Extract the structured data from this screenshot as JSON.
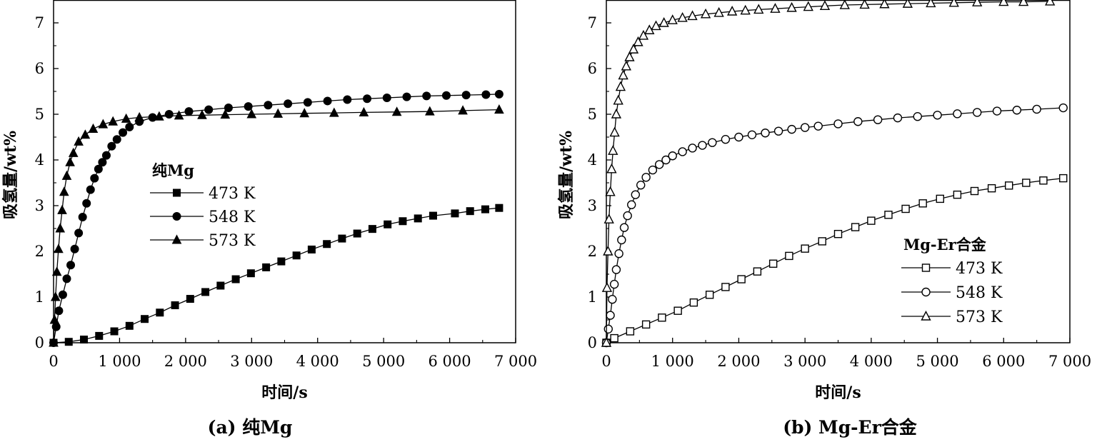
{
  "chart_data": [
    {
      "type": "line",
      "caption": "(a) 纯Mg",
      "xlabel": "时间/s",
      "ylabel": "吸氢量/wt%",
      "xlim": [
        0,
        7000
      ],
      "ylim": [
        0,
        7.5
      ],
      "xticks": [
        0,
        1000,
        2000,
        3000,
        4000,
        5000,
        6000,
        7000
      ],
      "xtick_labels": [
        "0",
        "1 000",
        "2 000",
        "3 000",
        "4 000",
        "5 000",
        "6 000",
        "7 000"
      ],
      "yticks": [
        0,
        1,
        2,
        3,
        4,
        5,
        6,
        7
      ],
      "ytick_labels": [
        "0",
        "1",
        "2",
        "3",
        "4",
        "5",
        "6",
        "7"
      ],
      "marker_style": "filled",
      "legend": {
        "title": "纯Mg",
        "position": "center-left"
      },
      "series": [
        {
          "name": "473 K",
          "marker": "square",
          "x": [
            0,
            230,
            460,
            690,
            920,
            1150,
            1380,
            1610,
            1840,
            2070,
            2300,
            2530,
            2760,
            2990,
            3220,
            3450,
            3680,
            3910,
            4140,
            4370,
            4600,
            4830,
            5060,
            5290,
            5520,
            5750,
            6080,
            6310,
            6540,
            6750
          ],
          "y": [
            0,
            0.02,
            0.07,
            0.15,
            0.25,
            0.37,
            0.52,
            0.66,
            0.82,
            0.96,
            1.11,
            1.25,
            1.39,
            1.52,
            1.65,
            1.78,
            1.91,
            2.04,
            2.16,
            2.28,
            2.39,
            2.49,
            2.59,
            2.66,
            2.72,
            2.78,
            2.83,
            2.88,
            2.92,
            2.95
          ]
        },
        {
          "name": "548 K",
          "marker": "circle",
          "x": [
            0,
            40,
            80,
            140,
            200,
            260,
            320,
            380,
            440,
            500,
            560,
            620,
            680,
            740,
            800,
            880,
            960,
            1050,
            1150,
            1300,
            1500,
            1750,
            2050,
            2350,
            2650,
            2950,
            3250,
            3550,
            3850,
            4150,
            4450,
            4750,
            5050,
            5350,
            5650,
            5950,
            6250,
            6550,
            6750
          ],
          "y": [
            0,
            0.35,
            0.7,
            1.05,
            1.4,
            1.7,
            2.05,
            2.4,
            2.75,
            3.05,
            3.35,
            3.6,
            3.8,
            3.95,
            4.1,
            4.3,
            4.45,
            4.6,
            4.72,
            4.84,
            4.93,
            5.0,
            5.06,
            5.1,
            5.14,
            5.17,
            5.2,
            5.23,
            5.26,
            5.29,
            5.32,
            5.34,
            5.36,
            5.38,
            5.4,
            5.41,
            5.42,
            5.43,
            5.44
          ]
        },
        {
          "name": "573 K",
          "marker": "triangle",
          "x": [
            0,
            15,
            30,
            50,
            75,
            100,
            130,
            160,
            200,
            250,
            300,
            380,
            480,
            600,
            750,
            900,
            1100,
            1300,
            1600,
            1900,
            2250,
            2600,
            3000,
            3400,
            3800,
            4250,
            4700,
            5200,
            5700,
            6200,
            6750
          ],
          "y": [
            0,
            0.5,
            1.0,
            1.55,
            2.05,
            2.5,
            2.9,
            3.3,
            3.65,
            3.95,
            4.15,
            4.4,
            4.55,
            4.68,
            4.78,
            4.84,
            4.9,
            4.93,
            4.95,
            4.97,
            4.98,
            4.99,
            5.0,
            5.01,
            5.02,
            5.03,
            5.04,
            5.05,
            5.06,
            5.08,
            5.1
          ]
        }
      ]
    },
    {
      "type": "line",
      "caption": "(b) Mg-Er合金",
      "xlabel": "时间/s",
      "ylabel": "吸氢量/wt%",
      "xlim": [
        0,
        7000
      ],
      "ylim": [
        0,
        7.5
      ],
      "xticks": [
        0,
        1000,
        2000,
        3000,
        4000,
        5000,
        6000,
        7000
      ],
      "xtick_labels": [
        "0",
        "1 000",
        "2 000",
        "3 000",
        "4 000",
        "5 000",
        "6 000",
        "7 000"
      ],
      "yticks": [
        0,
        1,
        2,
        3,
        4,
        5,
        6,
        7
      ],
      "ytick_labels": [
        "0",
        "1",
        "2",
        "3",
        "4",
        "5",
        "6",
        "7"
      ],
      "marker_style": "open",
      "legend": {
        "title": "Mg-Er合金",
        "position": "bottom-right"
      },
      "series": [
        {
          "name": "473 K",
          "marker": "square",
          "x": [
            0,
            120,
            360,
            600,
            840,
            1080,
            1320,
            1560,
            1800,
            2040,
            2280,
            2520,
            2760,
            3000,
            3260,
            3500,
            3760,
            4000,
            4260,
            4520,
            4780,
            5040,
            5300,
            5560,
            5820,
            6080,
            6340,
            6600,
            6900
          ],
          "y": [
            0,
            0.1,
            0.25,
            0.4,
            0.55,
            0.7,
            0.88,
            1.05,
            1.22,
            1.39,
            1.56,
            1.73,
            1.9,
            2.06,
            2.22,
            2.38,
            2.53,
            2.67,
            2.8,
            2.93,
            3.05,
            3.15,
            3.24,
            3.32,
            3.38,
            3.44,
            3.5,
            3.55,
            3.6
          ]
        },
        {
          "name": "548 K",
          "marker": "circle",
          "x": [
            0,
            30,
            60,
            90,
            120,
            150,
            190,
            230,
            270,
            320,
            380,
            440,
            520,
            600,
            700,
            800,
            900,
            1000,
            1150,
            1300,
            1450,
            1600,
            1800,
            2000,
            2200,
            2400,
            2600,
            2800,
            3000,
            3200,
            3500,
            3800,
            4100,
            4400,
            4700,
            5000,
            5300,
            5600,
            5900,
            6200,
            6500,
            6900
          ],
          "y": [
            0,
            0.3,
            0.6,
            0.95,
            1.28,
            1.6,
            1.95,
            2.25,
            2.52,
            2.78,
            3.02,
            3.24,
            3.45,
            3.62,
            3.78,
            3.9,
            4.0,
            4.09,
            4.18,
            4.26,
            4.32,
            4.38,
            4.45,
            4.5,
            4.55,
            4.59,
            4.63,
            4.67,
            4.71,
            4.74,
            4.79,
            4.84,
            4.88,
            4.92,
            4.95,
            4.98,
            5.01,
            5.04,
            5.07,
            5.09,
            5.11,
            5.14
          ]
        },
        {
          "name": "573 K",
          "marker": "triangle",
          "x": [
            0,
            10,
            25,
            40,
            60,
            80,
            100,
            125,
            150,
            180,
            215,
            255,
            300,
            350,
            410,
            480,
            560,
            650,
            750,
            870,
            1000,
            1150,
            1300,
            1500,
            1700,
            1900,
            2100,
            2300,
            2550,
            2800,
            3050,
            3300,
            3600,
            3900,
            4200,
            4550,
            4900,
            5250,
            5600,
            6000,
            6300,
            6700
          ],
          "y": [
            0,
            1.2,
            2.0,
            2.7,
            3.3,
            3.8,
            4.2,
            4.6,
            5.0,
            5.3,
            5.6,
            5.85,
            6.05,
            6.25,
            6.42,
            6.58,
            6.72,
            6.84,
            6.93,
            7.0,
            7.06,
            7.11,
            7.15,
            7.19,
            7.22,
            7.25,
            7.27,
            7.29,
            7.31,
            7.33,
            7.35,
            7.37,
            7.39,
            7.4,
            7.41,
            7.42,
            7.43,
            7.44,
            7.45,
            7.46,
            7.46,
            7.47
          ]
        }
      ]
    }
  ]
}
